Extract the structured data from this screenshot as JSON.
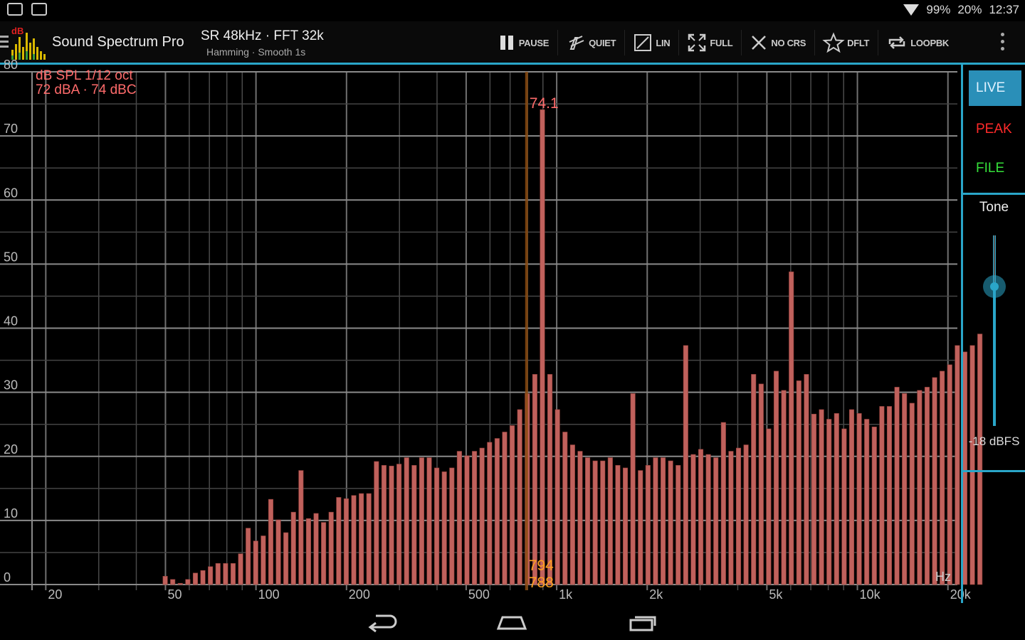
{
  "status": {
    "battery": "99%",
    "signal": "20%",
    "time": "12:37"
  },
  "app": {
    "title": "Sound Spectrum Pro",
    "logo_text": "dB",
    "settings_line1": "SR 48kHz · FFT 32k",
    "settings_line2": "Hamming · Smooth 1s"
  },
  "toolbar": [
    {
      "icon": "pause-icon",
      "label": "PAUSE"
    },
    {
      "icon": "quiet-icon",
      "label": "QUIET"
    },
    {
      "icon": "linear-scale-icon",
      "label": "LIN"
    },
    {
      "icon": "fullscreen-icon",
      "label": "FULL"
    },
    {
      "icon": "close-icon",
      "label": "NO CRS"
    },
    {
      "icon": "star-icon",
      "label": "DFLT"
    },
    {
      "icon": "loop-icon",
      "label": "LOOPBK"
    }
  ],
  "side_panel": {
    "live": "LIVE",
    "peak": "PEAK",
    "file": "FILE",
    "tone_label": "Tone",
    "tone_value": "-18 dBFS",
    "tone_fraction": 0.73
  },
  "colors": {
    "accent": "#2aa6c9",
    "bar": "#c0615c",
    "bar_stroke": "#8a3b36",
    "annotation_red": "#ff6b6b",
    "cursor": "#ffa020"
  },
  "chart_data": {
    "type": "bar",
    "info_line1": "dB SPL 1/12 oct",
    "info_line2": "72 dBA · 74 dBC",
    "x_unit_label": "Hz",
    "xscale": "log",
    "xlim": [
      18,
      21500
    ],
    "ylim": [
      0,
      80
    ],
    "y_ticks": [
      0,
      10,
      20,
      30,
      40,
      50,
      60,
      70,
      80
    ],
    "x_tick_labels": [
      {
        "f": 20,
        "label": "20"
      },
      {
        "f": 50,
        "label": "50"
      },
      {
        "f": 100,
        "label": "100"
      },
      {
        "f": 200,
        "label": "200"
      },
      {
        "f": 500,
        "label": "500"
      },
      {
        "f": 1000,
        "label": "1k"
      },
      {
        "f": 2000,
        "label": "2k"
      },
      {
        "f": 5000,
        "label": "5k"
      },
      {
        "f": 10000,
        "label": "10k"
      },
      {
        "f": 20000,
        "label": "20k"
      }
    ],
    "peak_label": "74.1",
    "cursor": {
      "freq": 794,
      "label_top": "794",
      "label_bottom": "788"
    },
    "bands_start_hz": 49.9,
    "bands_per_octave": 12,
    "values": [
      1.3,
      0.8,
      0.2,
      0.8,
      1.8,
      2.2,
      2.8,
      3.3,
      3.3,
      3.3,
      4.8,
      8.8,
      6.8,
      7.6,
      13.3,
      10.1,
      8.1,
      11.3,
      17.8,
      10.3,
      11.1,
      9.7,
      11.3,
      13.6,
      13.4,
      13.9,
      14.2,
      14.2,
      19.2,
      18.6,
      18.5,
      18.8,
      19.8,
      18.6,
      19.8,
      19.8,
      18.2,
      17.6,
      18.2,
      20.8,
      20.1,
      20.8,
      21.3,
      22.2,
      22.8,
      23.8,
      24.8,
      27.3,
      29.8,
      32.8,
      74.1,
      32.8,
      27.3,
      23.8,
      21.8,
      20.8,
      19.8,
      19.3,
      19.3,
      19.8,
      18.6,
      18.2,
      29.8,
      17.8,
      18.6,
      19.8,
      19.8,
      19.3,
      18.6,
      37.3,
      20.3,
      21.1,
      20.3,
      19.8,
      25.3,
      20.8,
      21.3,
      21.8,
      32.8,
      31.3,
      24.3,
      33.3,
      30.3,
      48.8,
      31.8,
      32.8,
      26.6,
      27.3,
      25.8,
      26.7,
      24.3,
      27.3,
      26.7,
      25.8,
      24.6,
      27.8,
      27.8,
      30.8,
      29.8,
      28.3,
      30.3,
      30.8,
      32.3,
      33.3,
      34.3,
      37.3,
      36.3,
      37.3,
      39.1
    ]
  }
}
